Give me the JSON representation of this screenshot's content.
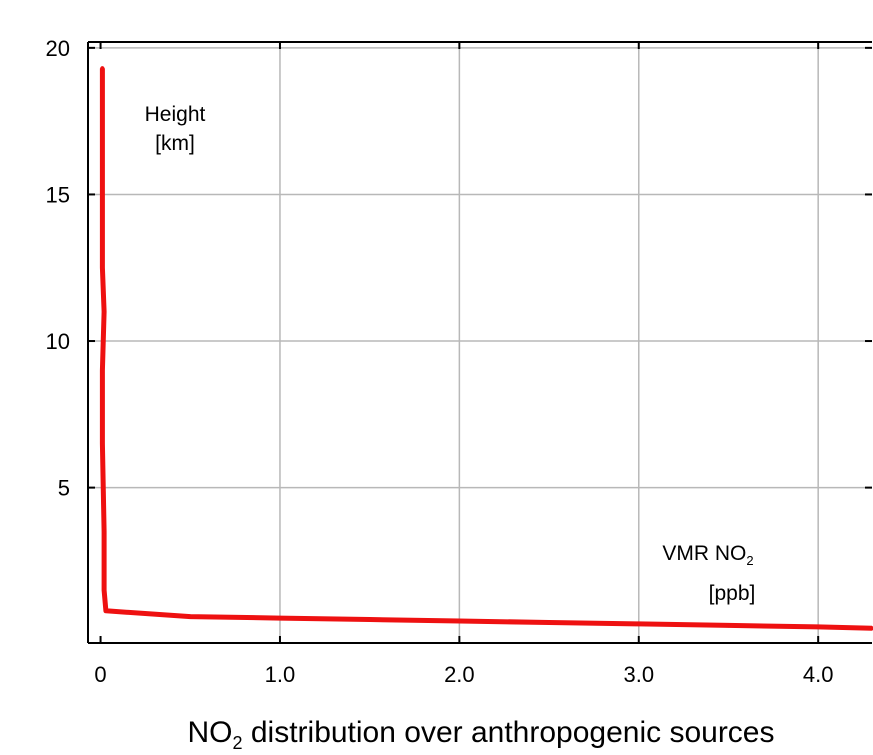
{
  "chart_data": {
    "type": "line",
    "title": "NO₂ distribution over anthropogenic sources",
    "title_main": "NO",
    "title_sub": "2",
    "title_rest": " distribution over anthropogenic sources",
    "y_annotation": [
      "Height",
      "[km]"
    ],
    "x_annotation": {
      "line1_main": "VMR NO",
      "line1_sub": "2",
      "line2": "[ppb]"
    },
    "xlim": [
      -0.07,
      4.3
    ],
    "ylim": [
      -0.3,
      20.2
    ],
    "x_ticks": [
      {
        "value": 0,
        "label": "0"
      },
      {
        "value": 1.0,
        "label": "1.0"
      },
      {
        "value": 2.0,
        "label": "2.0"
      },
      {
        "value": 3.0,
        "label": "3.0"
      },
      {
        "value": 4.0,
        "label": "4.0"
      }
    ],
    "y_ticks": [
      {
        "value": 5,
        "label": "5"
      },
      {
        "value": 10,
        "label": "10"
      },
      {
        "value": 15,
        "label": "15"
      },
      {
        "value": 20,
        "label": "20"
      }
    ],
    "grid": true,
    "series": [
      {
        "color": "#ee1111",
        "points": [
          {
            "x": 0.01,
            "y": 19.3
          },
          {
            "x": 0.01,
            "y": 16.0
          },
          {
            "x": 0.01,
            "y": 12.5
          },
          {
            "x": 0.02,
            "y": 11.0
          },
          {
            "x": 0.01,
            "y": 9.0
          },
          {
            "x": 0.01,
            "y": 6.5
          },
          {
            "x": 0.02,
            "y": 3.5
          },
          {
            "x": 0.02,
            "y": 1.5
          },
          {
            "x": 0.03,
            "y": 0.8
          },
          {
            "x": 0.5,
            "y": 0.6
          },
          {
            "x": 1.0,
            "y": 0.55
          },
          {
            "x": 1.5,
            "y": 0.5
          },
          {
            "x": 2.0,
            "y": 0.45
          },
          {
            "x": 2.5,
            "y": 0.4
          },
          {
            "x": 3.0,
            "y": 0.35
          },
          {
            "x": 3.5,
            "y": 0.3
          },
          {
            "x": 4.0,
            "y": 0.25
          },
          {
            "x": 4.3,
            "y": 0.2
          }
        ]
      }
    ]
  }
}
